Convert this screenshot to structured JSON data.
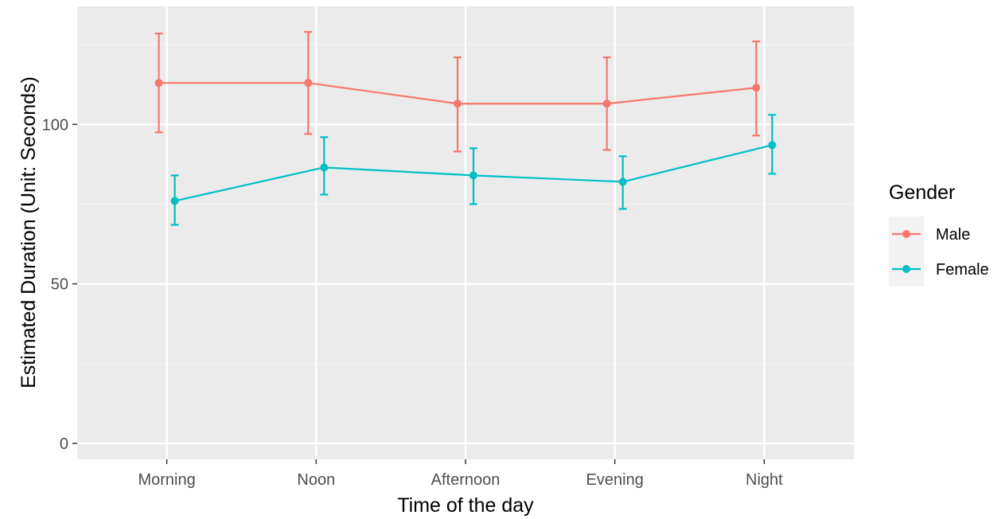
{
  "chart_data": {
    "type": "line",
    "title": "",
    "xlabel": "Time of the day",
    "ylabel": "Estimated Duration (Unit: Seconds)",
    "categories": [
      "Morning",
      "Noon",
      "Afternoon",
      "Evening",
      "Night"
    ],
    "ylim": [
      -5,
      137
    ],
    "yticks": [
      0,
      50,
      100
    ],
    "grid": true,
    "legend": {
      "title": "Gender",
      "position": "right"
    },
    "series": [
      {
        "name": "Male",
        "color": "#F8766D",
        "values": [
          113,
          113,
          106.5,
          106.5,
          111.5
        ],
        "lower": [
          97.5,
          97,
          91.5,
          92,
          96.5
        ],
        "upper": [
          128.5,
          129,
          121,
          121,
          126
        ]
      },
      {
        "name": "Female",
        "color": "#00BFC4",
        "values": [
          76,
          86.5,
          84,
          82,
          93.5
        ],
        "lower": [
          68.5,
          78,
          75,
          73.5,
          84.5
        ],
        "upper": [
          84,
          96,
          92.5,
          90,
          103
        ]
      }
    ]
  }
}
